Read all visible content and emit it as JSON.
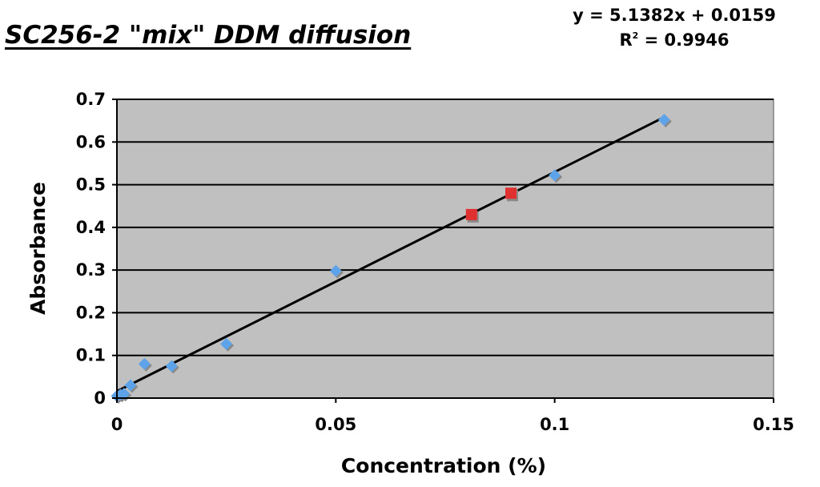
{
  "chart_data": {
    "type": "scatter",
    "title": "SC256-2 \"mix\" DDM diffusion",
    "xlabel": "Concentration (%)",
    "ylabel": "Absorbance",
    "xlim": [
      0,
      0.15
    ],
    "ylim": [
      0,
      0.7
    ],
    "x_ticks": [
      "0",
      "0.05",
      "0.1",
      "0.15"
    ],
    "y_ticks": [
      "0",
      "0.1",
      "0.2",
      "0.3",
      "0.4",
      "0.5",
      "0.6",
      "0.7"
    ],
    "x_tick_values": [
      0,
      0.05,
      0.1,
      0.15
    ],
    "y_tick_values": [
      0,
      0.1,
      0.2,
      0.3,
      0.4,
      0.5,
      0.6,
      0.7
    ],
    "grid": "horizontal",
    "background": "#c0c0c0",
    "series": [
      {
        "marker": "diamond",
        "color": "#5da3ea",
        "points": [
          {
            "x": 0.0,
            "y": 0.005
          },
          {
            "x": 0.0008,
            "y": 0.008
          },
          {
            "x": 0.0016,
            "y": 0.01
          },
          {
            "x": 0.0031,
            "y": 0.03
          },
          {
            "x": 0.0063,
            "y": 0.08
          },
          {
            "x": 0.0125,
            "y": 0.075
          },
          {
            "x": 0.025,
            "y": 0.127
          },
          {
            "x": 0.05,
            "y": 0.298
          },
          {
            "x": 0.1,
            "y": 0.522
          },
          {
            "x": 0.125,
            "y": 0.652
          }
        ]
      },
      {
        "marker": "square",
        "color": "#e03030",
        "points": [
          {
            "x": 0.081,
            "y": 0.43
          },
          {
            "x": 0.09,
            "y": 0.48
          }
        ]
      }
    ],
    "trendline": {
      "type": "linear",
      "slope": 5.1382,
      "intercept": 0.0159,
      "x_range": [
        0,
        0.125
      ],
      "color": "#000000",
      "equation_text": "y = 5.1382x + 0.0159",
      "r2_label": "R",
      "r2_sup": "2",
      "r2_value": " = 0.9946"
    }
  }
}
